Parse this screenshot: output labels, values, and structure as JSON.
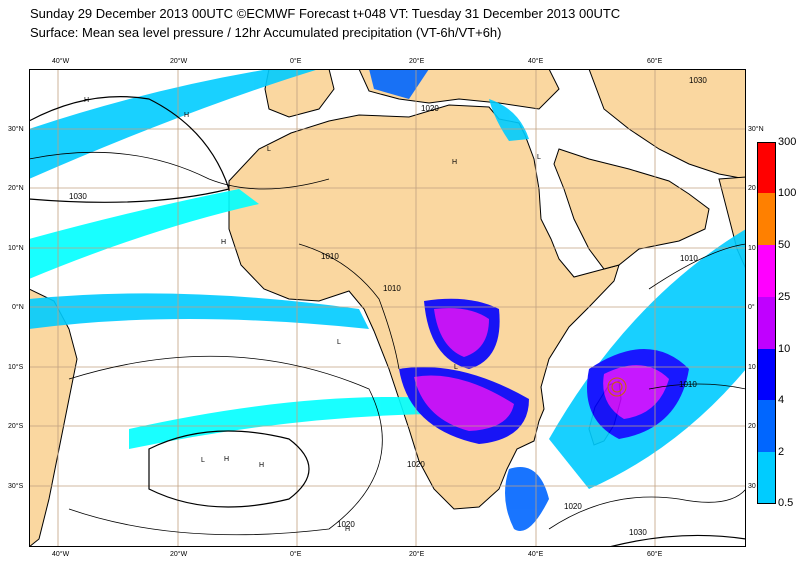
{
  "title_line1": "Sunday 29 December 2013 00UTC ©ECMWF Forecast t+048 VT: Tuesday 31 December 2013 00UTC",
  "title_line2": "Surface: Mean sea level pressure / 12hr Accumulated precipitation (VT-6h/VT+6h)",
  "lon_ticks": [
    "40°W",
    "20°W",
    "0°E",
    "20°E",
    "40°E",
    "60°E"
  ],
  "lat_ticks": [
    "30°N",
    "20°N",
    "10°N",
    "0°N",
    "10°S",
    "20°S",
    "30°S"
  ],
  "lat_ticks_right": [
    "30°N",
    "20",
    "10",
    "0°",
    "10",
    "20",
    "30"
  ],
  "isobar_labels": [
    "1030",
    "1020",
    "1010",
    "1010",
    "1010",
    "1020",
    "1010",
    "1020",
    "1030",
    "1030",
    "1020"
  ],
  "pressure_centres": [
    "H",
    "L"
  ],
  "colorbar": {
    "levels": [
      "300",
      "100",
      "50",
      "25",
      "10",
      "4",
      "2",
      "0.5"
    ],
    "colors": [
      "#ff0000",
      "#ff8000",
      "#ff00ff",
      "#c000ff",
      "#0000ff",
      "#0066ff",
      "#00ccff",
      "#00ffff"
    ]
  },
  "colors": {
    "land": "#fad7a0",
    "sea": "#ffffff",
    "grid": "#c0a080",
    "coast": "#000000"
  }
}
